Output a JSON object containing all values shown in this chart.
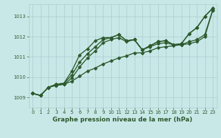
{
  "background_color": "#c8e8e8",
  "grid_color": "#aacccc",
  "line_color": "#2d5a2d",
  "xlabel": "Graphe pression niveau de la mer (hPa)",
  "xlim": [
    -0.5,
    23.5
  ],
  "ylim": [
    1008.5,
    1013.6
  ],
  "yticks": [
    1009,
    1010,
    1011,
    1012,
    1013
  ],
  "xticks": [
    0,
    1,
    2,
    3,
    4,
    5,
    6,
    7,
    8,
    9,
    10,
    11,
    12,
    13,
    14,
    15,
    16,
    17,
    18,
    19,
    20,
    21,
    22,
    23
  ],
  "series": [
    [
      1009.2,
      1009.1,
      1009.5,
      1009.6,
      1009.65,
      1009.8,
      1010.05,
      1010.3,
      1010.45,
      1010.65,
      1010.8,
      1010.95,
      1011.05,
      1011.2,
      1011.2,
      1011.3,
      1011.45,
      1011.5,
      1011.55,
      1011.6,
      1011.65,
      1011.75,
      1012.0,
      1013.3
    ],
    [
      1009.2,
      1009.1,
      1009.5,
      1009.6,
      1009.65,
      1009.95,
      1010.5,
      1010.95,
      1011.3,
      1011.7,
      1011.85,
      1011.95,
      1011.75,
      1011.85,
      1011.35,
      1011.5,
      1011.65,
      1011.7,
      1011.6,
      1011.6,
      1011.75,
      1011.85,
      1012.1,
      1013.3
    ],
    [
      1009.2,
      1009.1,
      1009.5,
      1009.65,
      1009.7,
      1010.1,
      1010.75,
      1011.15,
      1011.5,
      1011.85,
      1011.95,
      1012.1,
      1011.8,
      1011.85,
      1011.35,
      1011.55,
      1011.75,
      1011.8,
      1011.6,
      1011.65,
      1012.15,
      1012.45,
      1013.0,
      1013.4
    ],
    [
      1009.2,
      1009.1,
      1009.5,
      1009.65,
      1009.7,
      1010.3,
      1011.1,
      1011.4,
      1011.8,
      1011.95,
      1011.95,
      1012.1,
      1011.8,
      1011.85,
      1011.35,
      1011.55,
      1011.75,
      1011.8,
      1011.6,
      1011.65,
      1012.15,
      1012.45,
      1013.0,
      1013.4
    ]
  ],
  "marker": "D",
  "markersize": 2.5,
  "linewidth": 1.0
}
